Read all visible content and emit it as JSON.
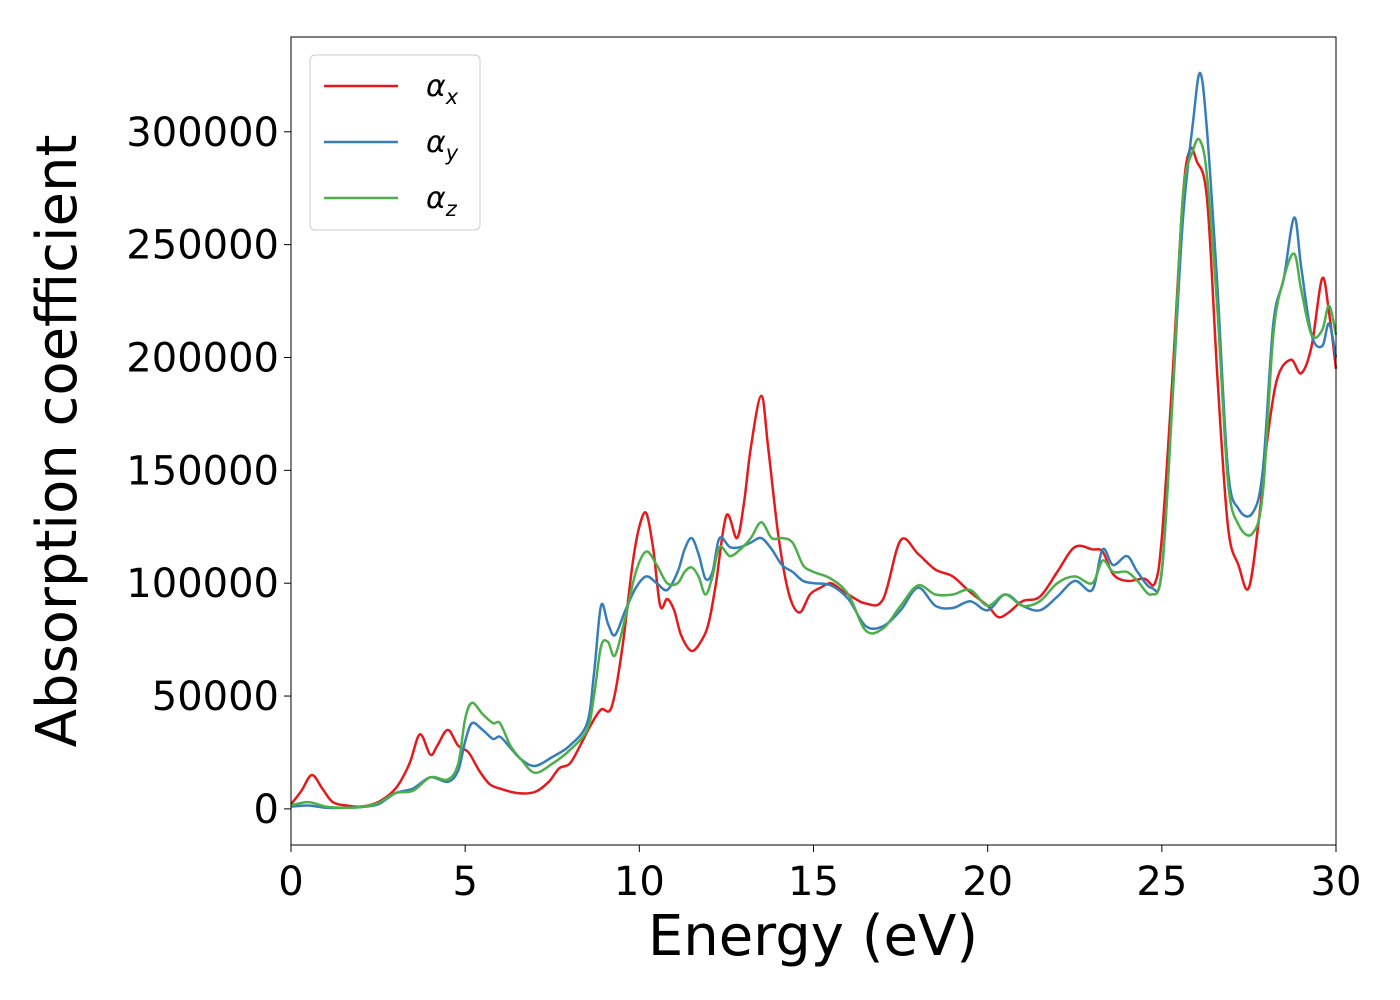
{
  "chart_data": {
    "type": "line",
    "title": "",
    "xlabel": "Energy (eV)",
    "ylabel": "Absorption coefficient",
    "xlim": [
      0,
      30
    ],
    "ylim": [
      -16000,
      342000
    ],
    "xticks": [
      0,
      5,
      10,
      15,
      20,
      25,
      30
    ],
    "yticks": [
      0,
      50000,
      100000,
      150000,
      200000,
      250000,
      300000
    ],
    "grid": false,
    "legend_position": "top-left",
    "series": [
      {
        "name": "α",
        "subscript": "x",
        "color": "#e41a1c",
        "x": [
          0,
          0.3,
          0.6,
          0.9,
          1.2,
          1.6,
          2,
          2.5,
          3,
          3.4,
          3.7,
          4,
          4.2,
          4.5,
          4.8,
          5.1,
          5.4,
          5.7,
          6,
          6.5,
          7,
          7.4,
          7.7,
          8,
          8.3,
          8.6,
          8.9,
          9.2,
          9.5,
          9.8,
          10,
          10.2,
          10.4,
          10.6,
          10.8,
          11,
          11.2,
          11.5,
          11.8,
          12,
          12.2,
          12.5,
          12.8,
          13,
          13.2,
          13.5,
          13.7,
          14,
          14.3,
          14.6,
          14.9,
          15.2,
          15.5,
          15.8,
          16,
          16.5,
          17,
          17.5,
          18,
          18.5,
          19,
          19.5,
          20,
          20.3,
          20.6,
          21,
          21.5,
          22,
          22.5,
          23,
          23.3,
          23.6,
          24,
          24.5,
          24.8,
          25,
          25.3,
          25.6,
          25.8,
          26,
          26.3,
          26.6,
          26.9,
          27.2,
          27.5,
          27.8,
          28,
          28.3,
          28.7,
          29,
          29.3,
          29.6,
          29.8,
          30
        ],
        "y": [
          2000,
          8000,
          15000,
          9000,
          3000,
          1500,
          1000,
          3000,
          9000,
          20000,
          33000,
          24000,
          28000,
          35000,
          28000,
          25000,
          17000,
          11000,
          9000,
          7000,
          7500,
          12000,
          18000,
          20000,
          28000,
          37000,
          44000,
          45000,
          70000,
          108000,
          125000,
          131000,
          115000,
          90000,
          93000,
          88000,
          77000,
          70000,
          75000,
          83000,
          100000,
          130000,
          120000,
          135000,
          160000,
          183000,
          160000,
          120000,
          95000,
          87000,
          95000,
          98000,
          100000,
          97000,
          95000,
          91000,
          93000,
          119000,
          113000,
          106000,
          103000,
          96000,
          90000,
          85000,
          87000,
          92000,
          94000,
          105000,
          116000,
          115000,
          114000,
          104000,
          101000,
          102000,
          100000,
          120000,
          190000,
          270000,
          292000,
          287000,
          270000,
          190000,
          125000,
          108000,
          98000,
          130000,
          160000,
          190000,
          199000,
          193000,
          205000,
          235000,
          220000,
          195000
        ]
      },
      {
        "name": "α",
        "subscript": "y",
        "color": "#377eb8",
        "x": [
          0,
          0.5,
          1,
          1.5,
          2,
          2.5,
          3,
          3.5,
          4,
          4.5,
          4.8,
          5,
          5.2,
          5.5,
          5.8,
          6,
          6.3,
          6.6,
          7,
          7.5,
          8,
          8.5,
          8.7,
          8.9,
          9.1,
          9.3,
          9.6,
          9.9,
          10.2,
          10.5,
          10.8,
          11.1,
          11.3,
          11.5,
          11.7,
          11.9,
          12.1,
          12.3,
          12.6,
          12.9,
          13.2,
          13.5,
          13.8,
          14.1,
          14.4,
          14.7,
          15,
          15.5,
          16,
          16.5,
          17,
          17.5,
          18,
          18.5,
          19,
          19.5,
          20,
          20.5,
          21,
          21.5,
          22,
          22.5,
          23,
          23.3,
          23.6,
          24,
          24.3,
          24.7,
          25,
          25.3,
          25.6,
          25.9,
          26.1,
          26.3,
          26.6,
          26.9,
          27.2,
          27.6,
          27.9,
          28.2,
          28.5,
          28.8,
          29,
          29.3,
          29.6,
          29.8,
          30
        ],
        "y": [
          1000,
          1500,
          500,
          500,
          800,
          2000,
          7000,
          9000,
          14000,
          12000,
          17000,
          30000,
          38000,
          35000,
          31000,
          32000,
          27000,
          22000,
          19000,
          23000,
          28000,
          38000,
          60000,
          90000,
          82000,
          77000,
          88000,
          98000,
          103000,
          100000,
          97000,
          105000,
          115000,
          120000,
          113000,
          102000,
          105000,
          120000,
          116000,
          116000,
          118000,
          120000,
          115000,
          108000,
          105000,
          101000,
          100000,
          99000,
          93000,
          81000,
          81000,
          88000,
          98000,
          90000,
          89000,
          92000,
          88000,
          95000,
          90000,
          88000,
          94000,
          101000,
          97000,
          115000,
          108000,
          112000,
          105000,
          98000,
          105000,
          180000,
          260000,
          305000,
          326000,
          300000,
          230000,
          150000,
          133000,
          131000,
          150000,
          215000,
          235000,
          262000,
          240000,
          210000,
          205000,
          215000,
          200000
        ]
      },
      {
        "name": "α",
        "subscript": "z",
        "color": "#4daf4a",
        "x": [
          0,
          0.5,
          1,
          1.5,
          2,
          2.5,
          3,
          3.5,
          4,
          4.5,
          4.8,
          5,
          5.2,
          5.5,
          5.8,
          6,
          6.3,
          6.6,
          7,
          7.5,
          8,
          8.5,
          8.7,
          8.9,
          9.1,
          9.3,
          9.6,
          9.9,
          10.2,
          10.5,
          10.8,
          11.1,
          11.3,
          11.5,
          11.7,
          11.9,
          12.1,
          12.3,
          12.6,
          12.9,
          13.2,
          13.5,
          13.8,
          14.1,
          14.4,
          14.7,
          15,
          15.5,
          16,
          16.5,
          17,
          17.5,
          18,
          18.5,
          19,
          19.5,
          20,
          20.5,
          21,
          21.5,
          22,
          22.5,
          23,
          23.3,
          23.6,
          24,
          24.3,
          24.7,
          25,
          25.3,
          25.6,
          25.9,
          26.1,
          26.3,
          26.6,
          26.9,
          27.2,
          27.6,
          27.9,
          28.2,
          28.5,
          28.8,
          29,
          29.3,
          29.6,
          29.8,
          30
        ],
        "y": [
          1500,
          3000,
          1000,
          500,
          800,
          2500,
          7000,
          8000,
          14000,
          13000,
          20000,
          40000,
          47000,
          42000,
          38000,
          38000,
          28000,
          22000,
          16000,
          20000,
          26000,
          35000,
          50000,
          72000,
          74000,
          68000,
          85000,
          105000,
          114000,
          108000,
          100000,
          100000,
          105000,
          107000,
          103000,
          95000,
          103000,
          116000,
          112000,
          115000,
          120000,
          127000,
          120000,
          120000,
          118000,
          108000,
          105000,
          102000,
          95000,
          79000,
          80000,
          90000,
          99000,
          95000,
          95000,
          97000,
          90000,
          95000,
          90000,
          92000,
          100000,
          103000,
          100000,
          110000,
          105000,
          105000,
          101000,
          95000,
          106000,
          180000,
          270000,
          292000,
          296000,
          280000,
          220000,
          145000,
          126000,
          122000,
          140000,
          210000,
          235000,
          246000,
          230000,
          210000,
          212000,
          223000,
          210000
        ]
      }
    ]
  }
}
